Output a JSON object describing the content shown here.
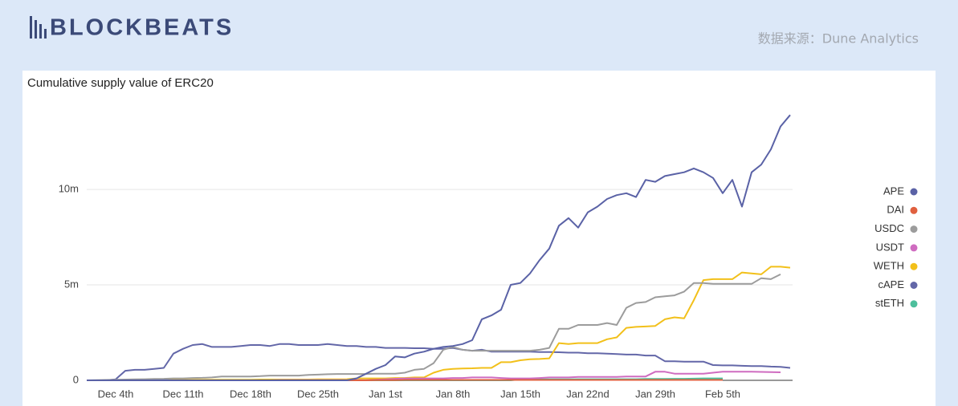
{
  "header": {
    "logo": "BLOCKBEATS",
    "source": "数据来源：Dune Analytics"
  },
  "chart_data": {
    "type": "line",
    "title": "Cumulative supply value of ERC20",
    "categories": [
      null,
      null,
      null,
      "Dec 4th",
      null,
      null,
      null,
      null,
      null,
      null,
      "Dec 11th",
      null,
      null,
      null,
      null,
      null,
      null,
      "Dec 18th",
      null,
      null,
      null,
      null,
      null,
      null,
      "Dec 25th",
      null,
      null,
      null,
      null,
      null,
      null,
      "Jan 1st",
      null,
      null,
      null,
      null,
      null,
      null,
      "Jan 8th",
      null,
      null,
      null,
      null,
      null,
      null,
      "Jan 15th",
      null,
      null,
      null,
      null,
      null,
      null,
      "Jan 22nd",
      null,
      null,
      null,
      null,
      null,
      null,
      "Jan 29th",
      null,
      null,
      null,
      null,
      null,
      null,
      "Feb 5th",
      null,
      null,
      null,
      null,
      null,
      null,
      null
    ],
    "ylim": [
      0,
      14500000
    ],
    "yticks": [
      0,
      {
        "value": 5000000,
        "label": "5m"
      },
      {
        "value": 10000000,
        "label": "10m"
      }
    ],
    "grid": true,
    "legend": "right",
    "series": [
      {
        "name": "APE",
        "color": "#5a62a6",
        "values": [
          0,
          0,
          0,
          0,
          0,
          0,
          0,
          0,
          0,
          0,
          0,
          0,
          0,
          0,
          0,
          0,
          0,
          0,
          0,
          0,
          0,
          0,
          0,
          0,
          0,
          0,
          0,
          0,
          100000,
          350000,
          600000,
          800000,
          1250000,
          1200000,
          1400000,
          1500000,
          1650000,
          1750000,
          1800000,
          1900000,
          2100000,
          3200000,
          3400000,
          3700000,
          5000000,
          5100000,
          5600000,
          6300000,
          6900000,
          8100000,
          8500000,
          8000000,
          8800000,
          9100000,
          9500000,
          9700000,
          9800000,
          9600000,
          10500000,
          10400000,
          10700000,
          10800000,
          10900000,
          11100000,
          10900000,
          10600000,
          9800000,
          10500000,
          9100000,
          10900000,
          11300000,
          12100000,
          13300000,
          13900000
        ]
      },
      {
        "name": "DAI",
        "color": "#e0603f",
        "values": [
          0,
          0,
          0,
          0,
          0,
          0,
          0,
          0,
          0,
          0,
          0,
          0,
          0,
          0,
          0,
          0,
          0,
          0,
          0,
          0,
          0,
          0,
          0,
          0,
          0,
          0,
          0,
          0,
          0,
          0,
          10000,
          10000,
          10000,
          20000,
          20000,
          20000,
          20000,
          20000,
          20000,
          20000,
          20000,
          20000,
          20000,
          20000,
          20000,
          20000,
          20000,
          20000,
          20000,
          20000,
          20000,
          20000,
          20000,
          20000,
          20000,
          20000,
          20000,
          20000,
          20000,
          20000,
          20000,
          20000,
          20000,
          20000,
          20000,
          20000,
          20000,
          null,
          null,
          null,
          null,
          null,
          null,
          null
        ]
      },
      {
        "name": "USDC",
        "color": "#9c9c9c",
        "values": [
          0,
          10000,
          20000,
          30000,
          40000,
          50000,
          60000,
          70000,
          80000,
          100000,
          100000,
          120000,
          130000,
          150000,
          200000,
          200000,
          200000,
          200000,
          220000,
          250000,
          250000,
          250000,
          250000,
          280000,
          300000,
          320000,
          330000,
          330000,
          330000,
          330000,
          350000,
          350000,
          350000,
          400000,
          550000,
          600000,
          900000,
          1600000,
          1750000,
          1600000,
          1550000,
          1550000,
          1550000,
          1550000,
          1550000,
          1550000,
          1550000,
          1600000,
          1700000,
          2700000,
          2700000,
          2900000,
          2900000,
          2900000,
          3000000,
          2900000,
          3800000,
          4050000,
          4100000,
          4350000,
          4400000,
          4450000,
          4650000,
          5100000,
          5100000,
          5050000,
          5050000,
          5050000,
          5050000,
          5050000,
          5350000,
          5300000,
          5550000,
          null
        ]
      },
      {
        "name": "USDT",
        "color": "#cf6cc0",
        "values": [
          0,
          0,
          0,
          0,
          0,
          0,
          0,
          0,
          0,
          0,
          0,
          0,
          0,
          0,
          0,
          0,
          0,
          0,
          0,
          0,
          10000,
          10000,
          10000,
          10000,
          10000,
          10000,
          10000,
          10000,
          10000,
          10000,
          30000,
          50000,
          80000,
          100000,
          100000,
          100000,
          100000,
          100000,
          120000,
          120000,
          150000,
          150000,
          150000,
          120000,
          100000,
          100000,
          100000,
          120000,
          150000,
          150000,
          150000,
          180000,
          180000,
          180000,
          180000,
          180000,
          200000,
          200000,
          200000,
          450000,
          450000,
          350000,
          350000,
          350000,
          350000,
          400000,
          450000,
          450000,
          450000,
          450000,
          440000,
          430000,
          420000,
          null
        ]
      },
      {
        "name": "WETH",
        "color": "#f2c01a",
        "values": [
          0,
          0,
          10000,
          10000,
          10000,
          20000,
          20000,
          20000,
          20000,
          20000,
          20000,
          30000,
          30000,
          30000,
          30000,
          30000,
          30000,
          30000,
          40000,
          40000,
          40000,
          40000,
          40000,
          40000,
          50000,
          50000,
          50000,
          60000,
          100000,
          100000,
          100000,
          100000,
          120000,
          120000,
          150000,
          150000,
          400000,
          550000,
          600000,
          620000,
          630000,
          650000,
          650000,
          950000,
          950000,
          1050000,
          1100000,
          1120000,
          1150000,
          1950000,
          1900000,
          1950000,
          1950000,
          1950000,
          2150000,
          2250000,
          2750000,
          2800000,
          2820000,
          2850000,
          3200000,
          3300000,
          3250000,
          4200000,
          5250000,
          5300000,
          5300000,
          5300000,
          5650000,
          5600000,
          5550000,
          5950000,
          5950000,
          5900000
        ]
      },
      {
        "name": "cAPE",
        "color": "#6367a8",
        "values": [
          0,
          0,
          0,
          50000,
          500000,
          550000,
          550000,
          600000,
          650000,
          1400000,
          1650000,
          1850000,
          1900000,
          1750000,
          1750000,
          1750000,
          1800000,
          1850000,
          1850000,
          1800000,
          1900000,
          1900000,
          1850000,
          1850000,
          1850000,
          1900000,
          1850000,
          1800000,
          1800000,
          1750000,
          1750000,
          1700000,
          1700000,
          1700000,
          1680000,
          1680000,
          1650000,
          1650000,
          1700000,
          1600000,
          1550000,
          1600000,
          1500000,
          1500000,
          1500000,
          1500000,
          1500000,
          1480000,
          1480000,
          1470000,
          1450000,
          1450000,
          1420000,
          1420000,
          1400000,
          1380000,
          1350000,
          1350000,
          1300000,
          1300000,
          1000000,
          1000000,
          980000,
          980000,
          980000,
          800000,
          780000,
          780000,
          760000,
          750000,
          750000,
          720000,
          700000,
          650000
        ]
      },
      {
        "name": "stETH",
        "color": "#4dbf9c",
        "values": [
          0,
          0,
          0,
          0,
          0,
          0,
          0,
          0,
          0,
          0,
          0,
          0,
          0,
          0,
          0,
          0,
          0,
          0,
          0,
          0,
          0,
          0,
          0,
          0,
          0,
          0,
          0,
          0,
          0,
          0,
          0,
          0,
          0,
          0,
          0,
          0,
          0,
          0,
          0,
          0,
          0,
          0,
          0,
          0,
          0,
          50000,
          50000,
          50000,
          50000,
          50000,
          50000,
          60000,
          60000,
          60000,
          60000,
          60000,
          60000,
          60000,
          70000,
          70000,
          70000,
          80000,
          80000,
          90000,
          100000,
          100000,
          100000,
          null,
          null,
          null,
          null,
          null,
          null,
          null
        ]
      }
    ]
  }
}
